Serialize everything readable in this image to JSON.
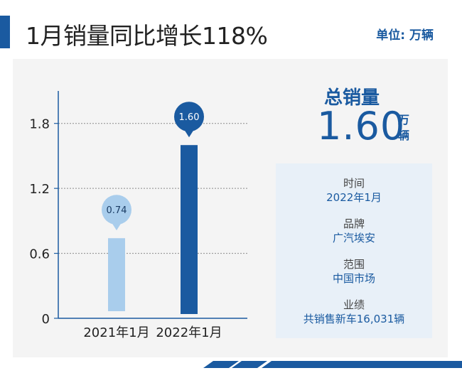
{
  "header": {
    "title": "1月销量同比增长118%",
    "unit": "单位: 万辆"
  },
  "summary": {
    "label": "总销量",
    "value": "1.60",
    "unit": "万辆"
  },
  "info": [
    {
      "label": "时间",
      "value": "2022年1月"
    },
    {
      "label": "品牌",
      "value": "广汽埃安"
    },
    {
      "label": "范围",
      "value": "中国市场"
    },
    {
      "label": "业绩",
      "value": "共销售新车16,031辆"
    }
  ],
  "colors": {
    "brand": "#1a5aa0",
    "bar_2021": "#a9cdec",
    "bar_2022": "#1a5aa0",
    "panel_bg": "#f4f4f4",
    "info_bg": "#e8f0f8"
  },
  "chart_data": {
    "type": "bar",
    "categories": [
      "2021年1月",
      "2022年1月"
    ],
    "values": [
      0.74,
      1.6
    ],
    "value_labels": [
      "0.74",
      "1.60"
    ],
    "yticks": [
      0,
      0.6,
      1.2,
      1.8
    ],
    "ytick_labels": [
      "0",
      "0.6",
      "1.2",
      "1.8"
    ],
    "ylim": [
      0,
      2.1
    ],
    "grid": true,
    "title": "",
    "xlabel": "",
    "ylabel": ""
  }
}
